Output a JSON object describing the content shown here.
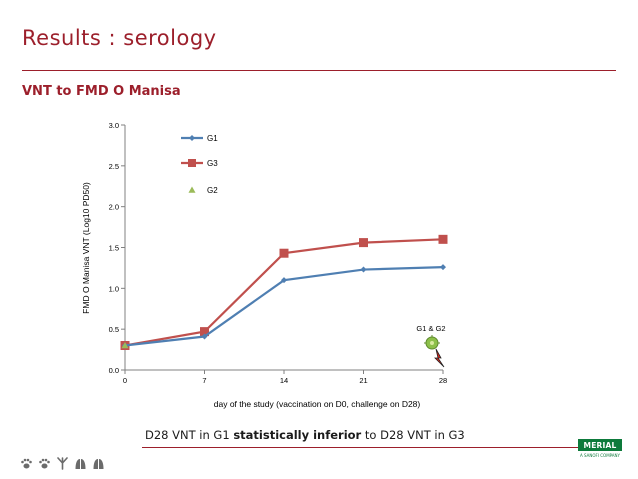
{
  "slide": {
    "title": "Results : serology",
    "subtitle": "VNT to FMD O Manisa",
    "caption_pre": "D28 VNT in G1 ",
    "caption_bold": "statistically inferior",
    "caption_post": " to D28 VNT in G3"
  },
  "colors": {
    "accent": "#9c1f2b",
    "g1": "#4f7fb2",
    "g3": "#c0504d",
    "g2": "#9bbb59",
    "brand": "#0d7a3b"
  },
  "footer": {
    "icons": [
      "paw-icon",
      "paw-icon",
      "bird-foot-icon",
      "hoof-icon",
      "hoof-icon"
    ]
  },
  "brand": {
    "name": "MERIAL",
    "tagline": "A SANOFI COMPANY"
  },
  "chart_data": {
    "type": "line",
    "title": "",
    "xlabel": "day of the study (vaccination on D0, challenge on D28)",
    "ylabel": "FMD O Manisa VNT (Log10 PD50)",
    "xlim": [
      0,
      28
    ],
    "ylim": [
      0,
      3
    ],
    "xticks": [
      0,
      7,
      14,
      21,
      28
    ],
    "xtick_labels": [
      "0",
      "7",
      "14",
      "21",
      "28"
    ],
    "yticks": [
      0,
      0.5,
      1,
      1.5,
      2,
      2.5,
      3
    ],
    "ytick_labels": [
      "0.0",
      "0.5",
      "1.0",
      "1.5",
      "2.0",
      "2.5",
      "3.0"
    ],
    "grid": false,
    "legend": "top-left",
    "series": [
      {
        "name": "G1",
        "marker": "diamond",
        "x": [
          0,
          7,
          14,
          21,
          28
        ],
        "values": [
          0.3,
          0.41,
          1.1,
          1.23,
          1.26
        ]
      },
      {
        "name": "G3",
        "marker": "square",
        "x": [
          0,
          7,
          14,
          21,
          28
        ],
        "values": [
          0.3,
          0.47,
          1.43,
          1.56,
          1.6
        ]
      },
      {
        "name": "G2",
        "marker": "triangle",
        "x": [
          0
        ],
        "values": [
          0.3
        ]
      }
    ],
    "annotations": [
      {
        "text": "G1 & G2",
        "x": 28,
        "y": 0.5
      }
    ]
  }
}
